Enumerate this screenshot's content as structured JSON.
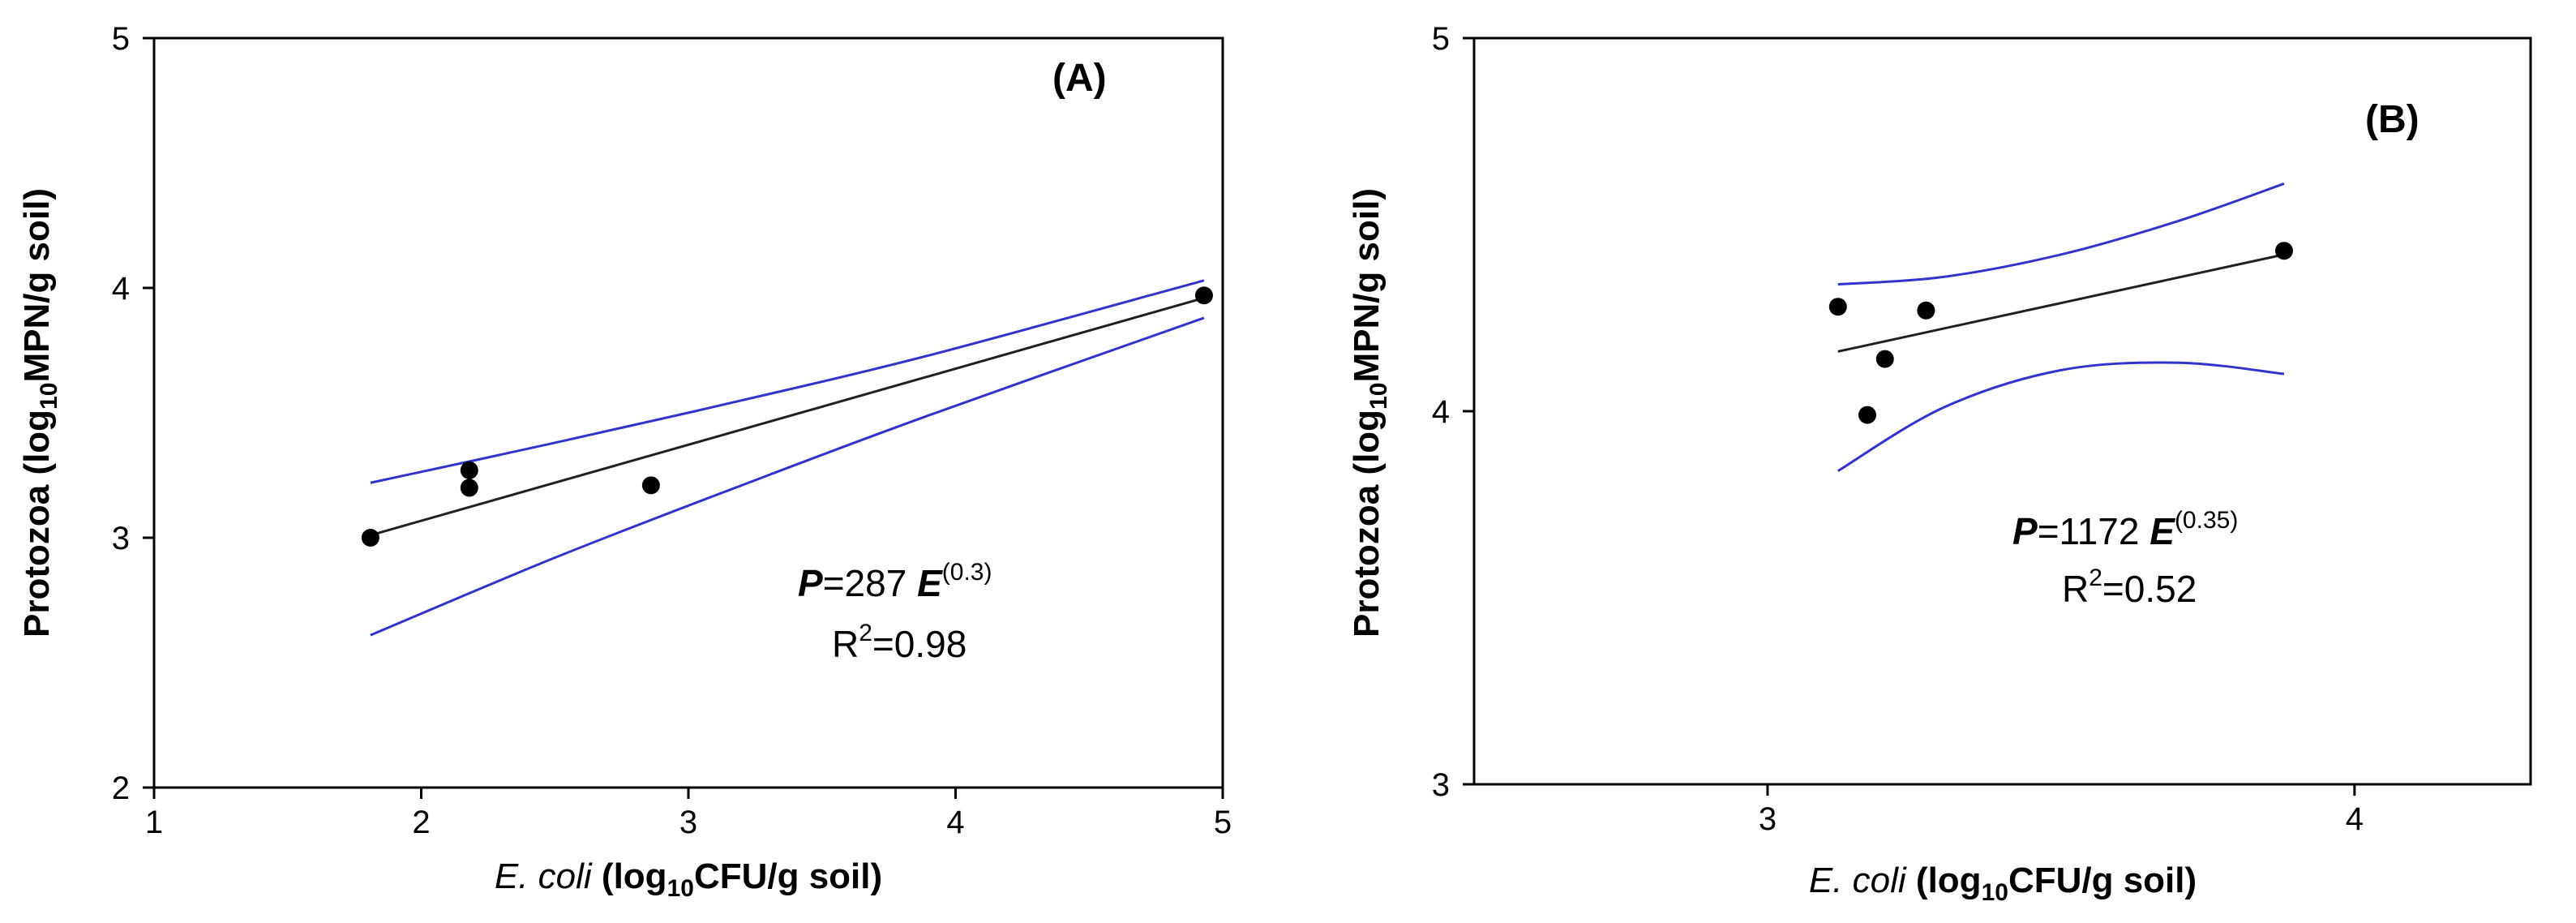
{
  "chart_data": [
    {
      "type": "scatter",
      "panel": "(A)",
      "xlabel": {
        "italic": "E. coli",
        "bold_pre": "(log",
        "sub": "10",
        "bold_post": "CFU/g soil)"
      },
      "ylabel": {
        "bold_pre": "Protozoa (log",
        "sub": "10",
        "bold_post": "MPN/g soil)"
      },
      "xlim": [
        1,
        5
      ],
      "ylim": [
        2,
        5
      ],
      "xticks": [
        1,
        2,
        3,
        4,
        5
      ],
      "yticks": [
        2,
        3,
        4,
        5
      ],
      "xtick_labels": [
        "1",
        "2",
        "3",
        "4",
        "5"
      ],
      "ytick_labels": [
        "2",
        "3",
        "4",
        "5"
      ],
      "points": [
        {
          "x": 1.81,
          "y": 3.0
        },
        {
          "x": 2.18,
          "y": 3.27
        },
        {
          "x": 2.18,
          "y": 3.2
        },
        {
          "x": 2.86,
          "y": 3.21
        },
        {
          "x": 4.93,
          "y": 3.97
        }
      ],
      "fit": {
        "x": [
          1.81,
          4.93
        ],
        "y": [
          3.01,
          3.96
        ]
      },
      "ci_upper": {
        "x": [
          1.81,
          2.5,
          3.2,
          3.9,
          4.93
        ],
        "y": [
          3.22,
          3.38,
          3.55,
          3.73,
          4.03
        ]
      },
      "ci_lower": {
        "x": [
          1.81,
          2.5,
          3.2,
          3.9,
          4.93
        ],
        "y": [
          2.61,
          2.92,
          3.21,
          3.49,
          3.88
        ]
      },
      "equation": {
        "p": "P",
        "eq_coef": "=287 ",
        "e": "E",
        "exponent": "(0.3)",
        "r_label": "R",
        "r_sup": "2",
        "r_value": "=0.98"
      }
    },
    {
      "type": "scatter",
      "panel": "(B)",
      "xlabel": {
        "italic": "E. coli",
        "bold_pre": "(log",
        "sub": "10",
        "bold_post": "CFU/g soil)"
      },
      "ylabel": {
        "bold_pre": "Protozoa (log",
        "sub": "10",
        "bold_post": "MPN/g soil)"
      },
      "xlim": [
        2.5,
        4.3
      ],
      "ylim": [
        3,
        5
      ],
      "xticks": [
        3,
        4
      ],
      "yticks": [
        3,
        4,
        5
      ],
      "xtick_labels": [
        "3",
        "4"
      ],
      "ytick_labels": [
        "3",
        "4",
        "5"
      ],
      "points": [
        {
          "x": 3.12,
          "y": 4.28
        },
        {
          "x": 3.17,
          "y": 3.99
        },
        {
          "x": 3.2,
          "y": 4.14
        },
        {
          "x": 3.27,
          "y": 4.27
        },
        {
          "x": 3.88,
          "y": 4.43
        }
      ],
      "fit": {
        "x": [
          3.12,
          3.88
        ],
        "y": [
          4.16,
          4.42
        ]
      },
      "ci_upper": {
        "x": [
          3.12,
          3.3,
          3.5,
          3.7,
          3.88
        ],
        "y": [
          4.34,
          4.36,
          4.42,
          4.51,
          4.61
        ]
      },
      "ci_lower": {
        "x": [
          3.12,
          3.3,
          3.5,
          3.7,
          3.88
        ],
        "y": [
          3.84,
          4.01,
          4.11,
          4.13,
          4.1
        ]
      },
      "equation": {
        "p": "P",
        "eq_coef": "=1172 ",
        "e": "E",
        "exponent": "(0.35)",
        "r_label": "R",
        "r_sup": "2",
        "r_value": "=0.52"
      }
    }
  ]
}
